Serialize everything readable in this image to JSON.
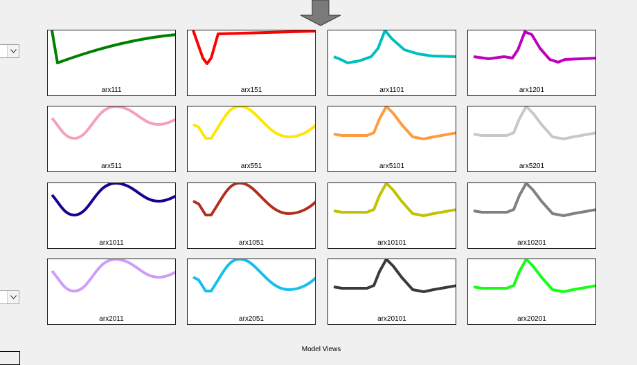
{
  "footer_label": "Model Views",
  "colors": {
    "background": "#f0f0f0",
    "panel_border": "#1a1a1a",
    "arrow": "#7a7a7a"
  },
  "panels": [
    {
      "label": "arx111",
      "color": "#008000",
      "shape": "decay"
    },
    {
      "label": "arx151",
      "color": "#ff0000",
      "shape": "dip"
    },
    {
      "label": "arx1101",
      "color": "#00bfbf",
      "shape": "sharp"
    },
    {
      "label": "arx1201",
      "color": "#bf00bf",
      "shape": "sharp2"
    },
    {
      "label": "arx511",
      "color": "#f7a1b6",
      "shape": "wave"
    },
    {
      "label": "arx551",
      "color": "#ffe600",
      "shape": "wave2"
    },
    {
      "label": "arx5101",
      "color": "#ff9c3f",
      "shape": "sharp3"
    },
    {
      "label": "arx5201",
      "color": "#c8c8c8",
      "shape": "sharp3"
    },
    {
      "label": "arx1011",
      "color": "#1a0090",
      "shape": "wave"
    },
    {
      "label": "arx1051",
      "color": "#b03020",
      "shape": "wave2"
    },
    {
      "label": "arx10101",
      "color": "#c2c200",
      "shape": "sharp3"
    },
    {
      "label": "arx10201",
      "color": "#808080",
      "shape": "sharp3"
    },
    {
      "label": "arx2011",
      "color": "#cf9cf7",
      "shape": "wave"
    },
    {
      "label": "arx2051",
      "color": "#14bff0",
      "shape": "wave2"
    },
    {
      "label": "arx20101",
      "color": "#3a3a3a",
      "shape": "sharp3"
    },
    {
      "label": "arx20201",
      "color": "#14ff14",
      "shape": "sharp3"
    }
  ]
}
